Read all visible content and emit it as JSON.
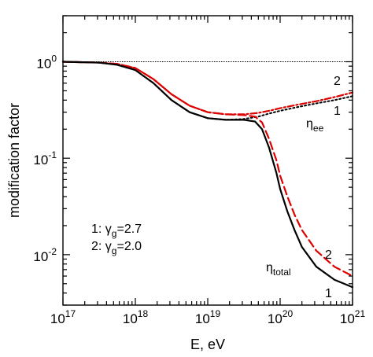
{
  "chart_data": {
    "type": "line",
    "xlabel": "E, eV",
    "ylabel": "modification factor",
    "x_scale": "log",
    "y_scale": "log",
    "xlim": [
      1e+17,
      1e+21
    ],
    "ylim": [
      0.003,
      3
    ],
    "x_ticks": [
      {
        "value": 1e+17,
        "base": "10",
        "exp": "17"
      },
      {
        "value": 1e+18,
        "base": "10",
        "exp": "18"
      },
      {
        "value": 1e+19,
        "base": "10",
        "exp": "19"
      },
      {
        "value": 1e+20,
        "base": "10",
        "exp": "20"
      },
      {
        "value": 1e+21,
        "base": "10",
        "exp": "21"
      }
    ],
    "y_ticks": [
      {
        "value": 1,
        "base": "10",
        "exp": "0"
      },
      {
        "value": 0.1,
        "base": "10",
        "exp": "-1"
      },
      {
        "value": 0.01,
        "base": "10",
        "exp": "-2"
      }
    ],
    "grid": false,
    "reference_line": {
      "y": 1,
      "style": "dotted",
      "color": "#000000"
    },
    "series": [
      {
        "label_key": "eta_ee",
        "curve": "1",
        "style": "dotted",
        "color": "#000000",
        "x": [
          1e+17,
          3.16e+17,
          5.62e+17,
          1e+18,
          1.78e+18,
          3.16e+18,
          5.62e+18,
          1e+19,
          1.78e+19,
          3.16e+19,
          5e+19,
          7e+19,
          1e+20,
          1.78e+20,
          3.16e+20,
          5.62e+20,
          1e+21
        ],
        "y": [
          1.0,
          0.98,
          0.93,
          0.82,
          0.6,
          0.4,
          0.3,
          0.26,
          0.25,
          0.255,
          0.27,
          0.29,
          0.31,
          0.34,
          0.37,
          0.4,
          0.44
        ]
      },
      {
        "label_key": "eta_ee",
        "curve": "2",
        "style": "dash-dot",
        "color": "#dd0000",
        "x": [
          1e+17,
          3.16e+17,
          5.62e+17,
          1e+18,
          1.78e+18,
          3.16e+18,
          5.62e+18,
          1e+19,
          1.78e+19,
          3.16e+19,
          5e+19,
          7e+19,
          1e+20,
          1.78e+20,
          3.16e+20,
          5.62e+20,
          1e+21
        ],
        "y": [
          1.0,
          0.98,
          0.95,
          0.86,
          0.66,
          0.46,
          0.35,
          0.3,
          0.285,
          0.285,
          0.295,
          0.31,
          0.33,
          0.36,
          0.39,
          0.43,
          0.48
        ]
      },
      {
        "label_key": "eta_total",
        "curve": "1",
        "style": "solid",
        "color": "#000000",
        "x": [
          1e+17,
          3.16e+17,
          5.62e+17,
          1e+18,
          1.78e+18,
          3.16e+18,
          5.62e+18,
          1e+19,
          1.78e+19,
          3.16e+19,
          4.5e+19,
          5.62e+19,
          7e+19,
          8.9e+19,
          1e+20,
          1.26e+20,
          1.58e+20,
          2e+20,
          3.16e+20,
          5.62e+20,
          1e+21
        ],
        "y": [
          1.0,
          0.98,
          0.93,
          0.82,
          0.6,
          0.4,
          0.3,
          0.26,
          0.25,
          0.25,
          0.24,
          0.2,
          0.13,
          0.07,
          0.048,
          0.028,
          0.018,
          0.012,
          0.0075,
          0.0055,
          0.0046
        ]
      },
      {
        "label_key": "eta_total",
        "curve": "2",
        "style": "dashed",
        "color": "#dd0000",
        "x": [
          1e+17,
          3.16e+17,
          5.62e+17,
          1e+18,
          1.78e+18,
          3.16e+18,
          5.62e+18,
          1e+19,
          1.78e+19,
          3.16e+19,
          4.5e+19,
          5.62e+19,
          7e+19,
          8.9e+19,
          1e+20,
          1.26e+20,
          1.58e+20,
          2e+20,
          3.16e+20,
          5.62e+20,
          1e+21
        ],
        "y": [
          1.0,
          0.98,
          0.95,
          0.86,
          0.66,
          0.46,
          0.35,
          0.3,
          0.285,
          0.28,
          0.27,
          0.235,
          0.16,
          0.095,
          0.066,
          0.04,
          0.026,
          0.018,
          0.011,
          0.0075,
          0.006
        ]
      }
    ],
    "annotations": {
      "eta_ee": {
        "sym": "η",
        "sub": "ee"
      },
      "eta_total": {
        "sym": "η",
        "sub": "total"
      },
      "curve_labels": {
        "upper_2": "2",
        "upper_1": "1",
        "lower_2": "2",
        "lower_1": "1"
      },
      "legend_lines": [
        {
          "prefix": "1: ",
          "sym": "γ",
          "sub": "g",
          "suffix": "=2.7"
        },
        {
          "prefix": "2: ",
          "sym": "γ",
          "sub": "g",
          "suffix": "=2.0"
        }
      ]
    },
    "colors": {
      "black": "#000000",
      "red": "#dd0000"
    }
  }
}
